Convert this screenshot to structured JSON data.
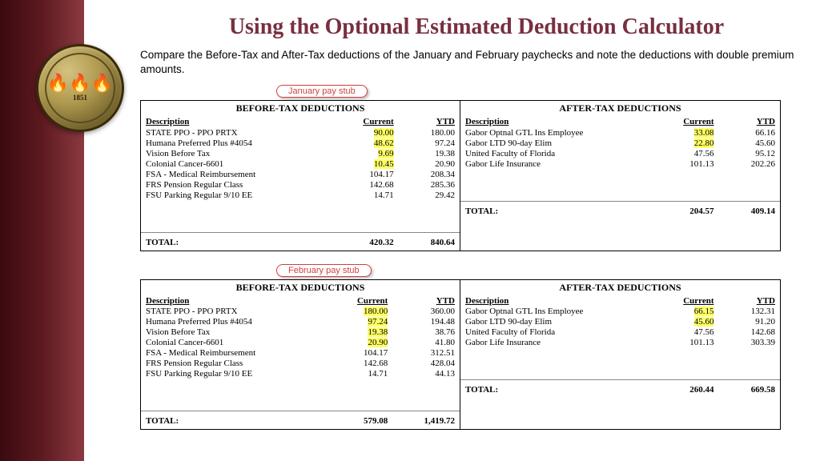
{
  "title": "Using the Optional Estimated Deduction Calculator",
  "subtitle": "Compare the Before-Tax and After-Tax deductions  of the January and February paychecks and note the deductions with double premium amounts.",
  "seal_year": "1851",
  "labels": {
    "jan": "January pay stub",
    "feb": "February pay stub",
    "before": "BEFORE-TAX DEDUCTIONS",
    "after": "AFTER-TAX DEDUCTIONS",
    "desc": "Description",
    "cur": "Current",
    "ytd": "YTD",
    "total": "TOTAL:"
  },
  "jan": {
    "before": {
      "rows": [
        {
          "d": "STATE PPO - PPO PRTX",
          "c": "90.00",
          "y": "180.00",
          "hl": true
        },
        {
          "d": "Humana Preferred Plus #4054",
          "c": "48.62",
          "y": "97.24",
          "hl": true
        },
        {
          "d": "Vision Before Tax",
          "c": "9.69",
          "y": "19.38",
          "hl": true
        },
        {
          "d": "Colonial Cancer-6601",
          "c": "10.45",
          "y": "20.90",
          "hl": true
        },
        {
          "d": "FSA - Medical Reimbursement",
          "c": "104.17",
          "y": "208.34",
          "hl": false
        },
        {
          "d": "FRS Pension Regular Class",
          "c": "142.68",
          "y": "285.36",
          "hl": false
        },
        {
          "d": "FSU Parking Regular 9/10 EE",
          "c": "14.71",
          "y": "29.42",
          "hl": false
        }
      ],
      "total_c": "420.32",
      "total_y": "840.64"
    },
    "after": {
      "rows": [
        {
          "d": "Gabor Optnal GTL Ins Employee",
          "c": "33.08",
          "y": "66.16",
          "hl": true
        },
        {
          "d": "Gabor LTD 90-day Elim",
          "c": "22.80",
          "y": "45.60",
          "hl": true
        },
        {
          "d": "United Faculty of Florida",
          "c": "47.56",
          "y": "95.12",
          "hl": false
        },
        {
          "d": "Gabor Life Insurance",
          "c": "101.13",
          "y": "202.26",
          "hl": false
        }
      ],
      "total_c": "204.57",
      "total_y": "409.14"
    }
  },
  "feb": {
    "before": {
      "rows": [
        {
          "d": "STATE PPO - PPO PRTX",
          "c": "180.00",
          "y": "360.00",
          "hl": true
        },
        {
          "d": "Humana Preferred Plus #4054",
          "c": "97.24",
          "y": "194.48",
          "hl": true
        },
        {
          "d": "Vision Before Tax",
          "c": "19.38",
          "y": "38.76",
          "hl": true
        },
        {
          "d": "Colonial Cancer-6601",
          "c": "20.90",
          "y": "41.80",
          "hl": true
        },
        {
          "d": "FSA - Medical Reimbursement",
          "c": "104.17",
          "y": "312.51",
          "hl": false
        },
        {
          "d": "FRS Pension Regular Class",
          "c": "142.68",
          "y": "428.04",
          "hl": false
        },
        {
          "d": "FSU Parking Regular 9/10 EE",
          "c": "14.71",
          "y": "44.13",
          "hl": false
        }
      ],
      "total_c": "579.08",
      "total_y": "1,419.72"
    },
    "after": {
      "rows": [
        {
          "d": "Gabor Optnal GTL Ins Employee",
          "c": "66.15",
          "y": "132.31",
          "hl": true
        },
        {
          "d": "Gabor LTD 90-day Elim",
          "c": "45.60",
          "y": "91.20",
          "hl": true
        },
        {
          "d": "United Faculty of Florida",
          "c": "47.56",
          "y": "142.68",
          "hl": false
        },
        {
          "d": "Gabor Life Insurance",
          "c": "101.13",
          "y": "303.39",
          "hl": false
        }
      ],
      "total_c": "260.44",
      "total_y": "669.58"
    }
  }
}
